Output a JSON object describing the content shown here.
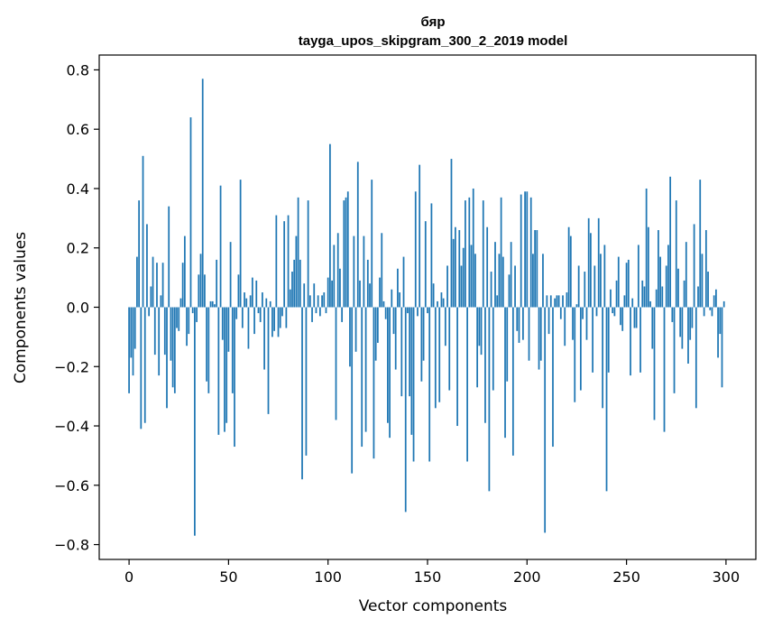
{
  "chart_data": {
    "type": "bar",
    "title_line1": "бяр",
    "title_line2": "tayga_upos_skipgram_300_2_2019 model",
    "xlabel": "Vector components",
    "ylabel": "Components values",
    "xlim": [
      -15,
      315
    ],
    "ylim": [
      -0.85,
      0.85
    ],
    "xticks": [
      0,
      50,
      100,
      150,
      200,
      250,
      300
    ],
    "xtick_labels": [
      "0",
      "50",
      "100",
      "150",
      "200",
      "250",
      "300"
    ],
    "yticks": [
      -0.8,
      -0.6,
      -0.4,
      -0.2,
      0.0,
      0.2,
      0.4,
      0.6,
      0.8
    ],
    "ytick_labels": [
      "−0.8",
      "−0.6",
      "−0.4",
      "−0.2",
      "0.0",
      "0.2",
      "0.4",
      "0.6",
      "0.8"
    ],
    "bar_color": "#1f77b4",
    "values": [
      -0.29,
      -0.17,
      -0.23,
      -0.14,
      0.17,
      0.36,
      -0.41,
      0.51,
      -0.39,
      0.28,
      -0.03,
      0.07,
      0.17,
      -0.16,
      0.15,
      -0.23,
      0.04,
      0.15,
      -0.16,
      -0.34,
      0.34,
      -0.18,
      -0.27,
      -0.29,
      -0.07,
      -0.08,
      0.03,
      0.15,
      0.24,
      -0.13,
      -0.09,
      0.64,
      -0.02,
      -0.77,
      -0.05,
      0.11,
      0.18,
      0.77,
      0.11,
      -0.25,
      -0.29,
      0.02,
      0.02,
      0.01,
      0.16,
      -0.43,
      0.41,
      -0.11,
      -0.42,
      -0.39,
      -0.15,
      0.22,
      -0.29,
      -0.47,
      -0.04,
      0.11,
      0.43,
      -0.07,
      0.05,
      0.03,
      -0.14,
      0.04,
      0.1,
      -0.09,
      0.09,
      -0.02,
      -0.05,
      0.05,
      -0.21,
      0.03,
      -0.36,
      0.02,
      -0.1,
      -0.08,
      0.31,
      -0.1,
      -0.07,
      -0.03,
      0.29,
      -0.07,
      0.31,
      0.06,
      0.12,
      0.16,
      0.24,
      0.37,
      0.16,
      -0.58,
      0.08,
      -0.5,
      0.36,
      0.04,
      -0.05,
      0.08,
      -0.02,
      0.04,
      -0.03,
      0.04,
      0.05,
      -0.02,
      0.1,
      0.55,
      0.09,
      0.21,
      -0.38,
      0.25,
      0.13,
      -0.05,
      0.36,
      0.37,
      0.39,
      -0.2,
      -0.56,
      0.24,
      -0.15,
      0.49,
      0.09,
      -0.47,
      0.24,
      -0.42,
      0.16,
      0.08,
      0.43,
      -0.51,
      -0.18,
      -0.12,
      0.1,
      0.25,
      0.02,
      -0.04,
      -0.39,
      -0.44,
      0.06,
      -0.09,
      -0.21,
      0.13,
      0.05,
      -0.3,
      0.17,
      -0.69,
      -0.02,
      -0.3,
      -0.43,
      -0.52,
      0.39,
      -0.03,
      0.48,
      -0.25,
      -0.18,
      0.29,
      -0.02,
      -0.52,
      0.35,
      0.08,
      -0.34,
      0.02,
      -0.32,
      0.05,
      0.03,
      -0.13,
      0.14,
      -0.28,
      0.5,
      0.23,
      0.27,
      -0.4,
      0.26,
      0.14,
      0.2,
      0.36,
      -0.52,
      0.37,
      0.21,
      0.4,
      0.18,
      -0.27,
      -0.13,
      -0.16,
      0.36,
      -0.39,
      0.27,
      -0.62,
      0.12,
      -0.28,
      0.22,
      0.04,
      0.18,
      0.37,
      0.17,
      -0.44,
      -0.25,
      0.11,
      0.22,
      -0.5,
      0.14,
      -0.08,
      -0.12,
      0.38,
      -0.11,
      0.39,
      0.39,
      -0.18,
      0.37,
      0.18,
      0.26,
      0.26,
      -0.21,
      -0.18,
      0.18,
      -0.76,
      0.04,
      -0.09,
      0.04,
      -0.47,
      0.03,
      0.04,
      0.04,
      -0.04,
      0.04,
      -0.13,
      0.05,
      0.27,
      0.24,
      -0.11,
      -0.32,
      0.01,
      0.14,
      -0.28,
      -0.04,
      0.12,
      -0.11,
      0.3,
      0.25,
      -0.22,
      0.14,
      -0.03,
      0.3,
      0.18,
      -0.34,
      0.21,
      -0.62,
      -0.22,
      0.06,
      -0.02,
      -0.03,
      0.09,
      0.17,
      -0.06,
      -0.08,
      0.04,
      0.15,
      0.16,
      -0.23,
      0.03,
      -0.07,
      -0.07,
      0.21,
      -0.22,
      0.09,
      0.07,
      0.4,
      0.27,
      0.02,
      -0.14,
      -0.38,
      0.06,
      0.26,
      0.17,
      0.07,
      -0.42,
      0.14,
      0.21,
      0.44,
      -0.05,
      -0.29,
      0.36,
      0.13,
      -0.1,
      -0.14,
      0.09,
      0.22,
      -0.19,
      -0.11,
      -0.07,
      0.28,
      -0.34,
      0.07,
      0.43,
      0.18,
      -0.03,
      0.26,
      0.12,
      -0.01,
      -0.03,
      0.04,
      0.06,
      -0.17,
      -0.09,
      -0.27,
      0.02
    ]
  }
}
